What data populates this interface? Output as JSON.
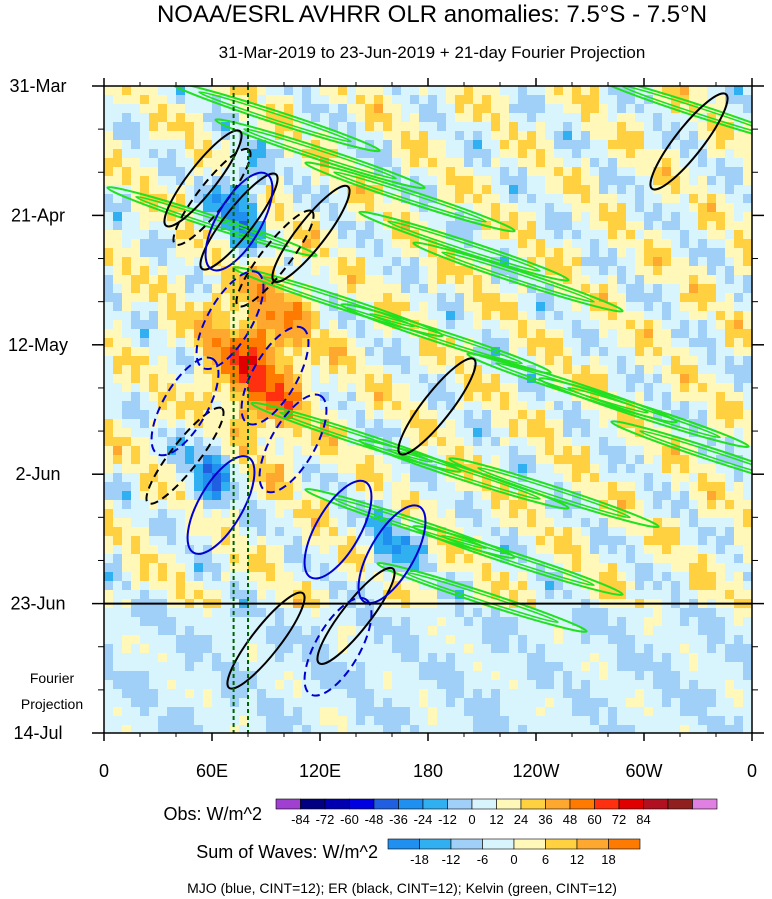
{
  "chart_data": {
    "type": "heatmap",
    "title": "NOAA/ESRL AVHRR OLR anomalies: 7.5°S - 7.5°N",
    "subtitle": "31-Mar-2019 to 23-Jun-2019 + 21-day Fourier Projection",
    "x_ticks": [
      "0",
      "60E",
      "120E",
      "180",
      "120W",
      "60W",
      "0"
    ],
    "x_tick_values": [
      0,
      60,
      120,
      180,
      240,
      300,
      360
    ],
    "xlim": [
      0,
      360
    ],
    "y_ticks": [
      "31-Mar",
      "21-Apr",
      "12-May",
      "2-Jun",
      "23-Jun",
      "14-Jul"
    ],
    "y_tick_values": [
      "2019-03-31",
      "2019-04-21",
      "2019-05-12",
      "2019-06-02",
      "2019-06-23",
      "2019-07-14"
    ],
    "ylim": [
      "2019-03-31",
      "2019-07-14"
    ],
    "y_direction": "time increases downward",
    "end_of_observations": "2019-06-23",
    "projection_label_line1": "Fourier",
    "projection_label_line2": "Projection",
    "dashed_reference_lines_lon": [
      72,
      80
    ],
    "obs_colorbar": {
      "label": "Obs: W/m^2",
      "levels": [
        "-84",
        "-72",
        "-60",
        "-48",
        "-36",
        "-24",
        "-12",
        "0",
        "12",
        "24",
        "36",
        "48",
        "60",
        "72",
        "84"
      ],
      "colors": [
        "#a040d0",
        "#000080",
        "#0000b0",
        "#0000e0",
        "#2060e0",
        "#2090f0",
        "#30b0f0",
        "#a0d0f8",
        "#d8f4fc",
        "#fff8b8",
        "#ffd040",
        "#ffa830",
        "#ff7a00",
        "#ff3010",
        "#e00000",
        "#b01020",
        "#902020",
        "#e080e0"
      ]
    },
    "waves_colorbar": {
      "label": "Sum of Waves: W/m^2",
      "levels": [
        "-18",
        "-12",
        "-6",
        "0",
        "6",
        "12",
        "18"
      ],
      "colors": [
        "#2090f0",
        "#30b0f0",
        "#a0d0f8",
        "#d8f4fc",
        "#fff8b8",
        "#ffd040",
        "#ffa830",
        "#ff7a00"
      ]
    },
    "legend_text": "MJO (blue, CINT=12); ER (black, CINT=12); Kelvin (green, CINT=12)",
    "contour_colors": {
      "mjo": "#0000d0",
      "er": "#000000",
      "kelvin": "#20e020"
    }
  }
}
